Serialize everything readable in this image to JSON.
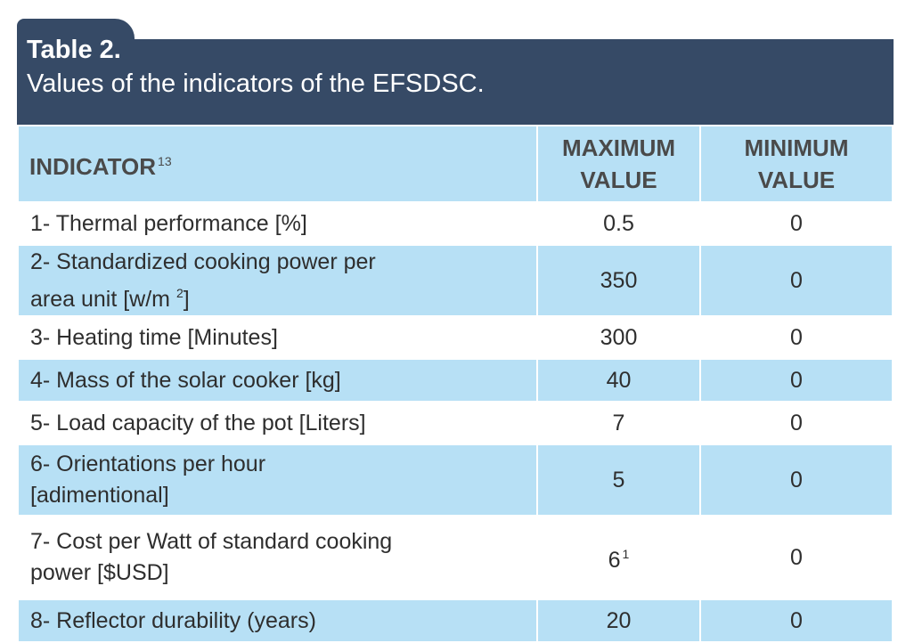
{
  "title": {
    "number": "Table 2.",
    "caption": "Values of the indicators of the EFSDSC."
  },
  "table": {
    "headers": {
      "indicator": "INDICATOR",
      "indicator_note": "13",
      "max_line1": "MAXIMUM",
      "max_line2": "VALUE",
      "min_line1": "MINIMUM",
      "min_line2": "VALUE"
    },
    "rows": [
      {
        "line1": "1- Thermal performance [%]",
        "line2": "",
        "sup": "",
        "max": "0.5",
        "max_note": "",
        "min": "0"
      },
      {
        "line1": "2- Standardized cooking power per",
        "line2": "area unit [w/m ",
        "sup": "2",
        "tail": "]",
        "max": "350",
        "max_note": "",
        "min": "0"
      },
      {
        "line1": "3- Heating time [Minutes]",
        "line2": "",
        "max": "300",
        "max_note": "",
        "min": "0"
      },
      {
        "line1": "4- Mass of the solar cooker [kg]",
        "line2": "",
        "max": "40",
        "max_note": "",
        "min": "0"
      },
      {
        "line1": "5- Load capacity of the pot [Liters]",
        "line2": "",
        "max": "7",
        "max_note": "",
        "min": "0"
      },
      {
        "line1": "6- Orientations per hour",
        "line2": "[adimentional]",
        "max": "5",
        "max_note": "",
        "min": "0"
      },
      {
        "line1": "7- Cost per Watt of standard cooking",
        "line2": "power [$USD]",
        "max": "6",
        "max_note": "1",
        "min": "0"
      },
      {
        "line1": "8- Reflector durability (years)",
        "line2": "",
        "max": "20",
        "max_note": "",
        "min": "0"
      }
    ]
  },
  "colors": {
    "title_bg": "#364a66",
    "header_bg": "#b7e0f5",
    "row_alt_bg": "#b7e0f5",
    "text": "#2e2e2e"
  }
}
